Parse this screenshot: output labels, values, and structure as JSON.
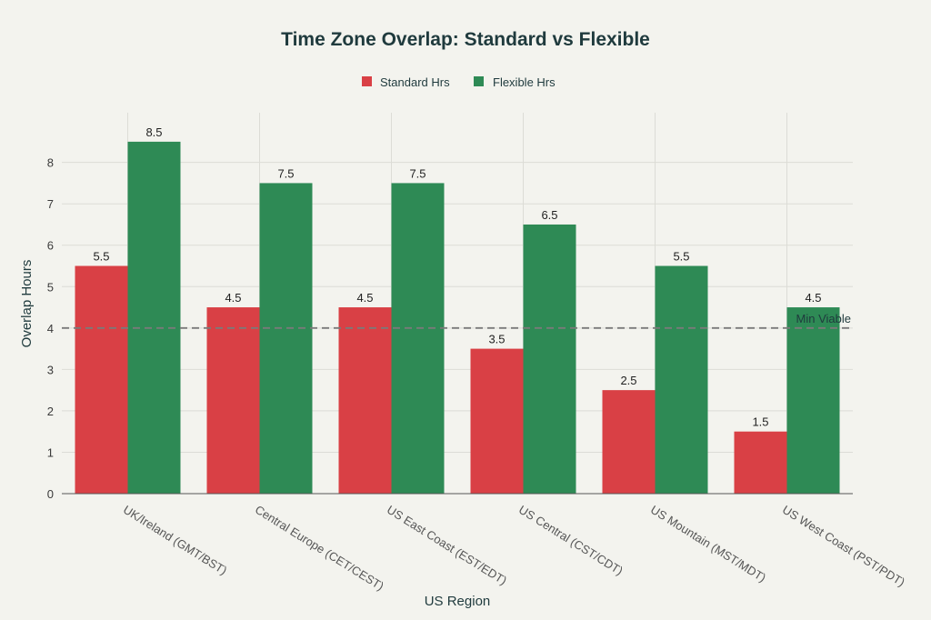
{
  "chart_data": {
    "type": "bar",
    "title": "Time Zone Overlap: Standard vs Flexible",
    "xlabel": "US Region",
    "ylabel": "Overlap Hours",
    "categories": [
      "UK/Ireland (GMT/BST)",
      "Central Europe (CET/CEST)",
      "US East Coast (EST/EDT)",
      "US Central (CST/CDT)",
      "US Mountain (MST/MDT)",
      "US West Coast (PST/PDT)"
    ],
    "series": [
      {
        "name": "Standard Hrs",
        "color": "#d94045",
        "values": [
          5.5,
          4.5,
          4.5,
          3.5,
          2.5,
          1.5
        ]
      },
      {
        "name": "Flexible Hrs",
        "color": "#2e8a55",
        "values": [
          8.5,
          7.5,
          7.5,
          6.5,
          5.5,
          4.5
        ]
      }
    ],
    "ylim": [
      0,
      9.2
    ],
    "yticks": [
      "0",
      "1",
      "2",
      "3",
      "4",
      "5",
      "6",
      "7",
      "8"
    ],
    "grid": true,
    "legend": "top-center",
    "reference_line": {
      "value": 4,
      "label": "Min Viable",
      "style": "dashed"
    }
  }
}
